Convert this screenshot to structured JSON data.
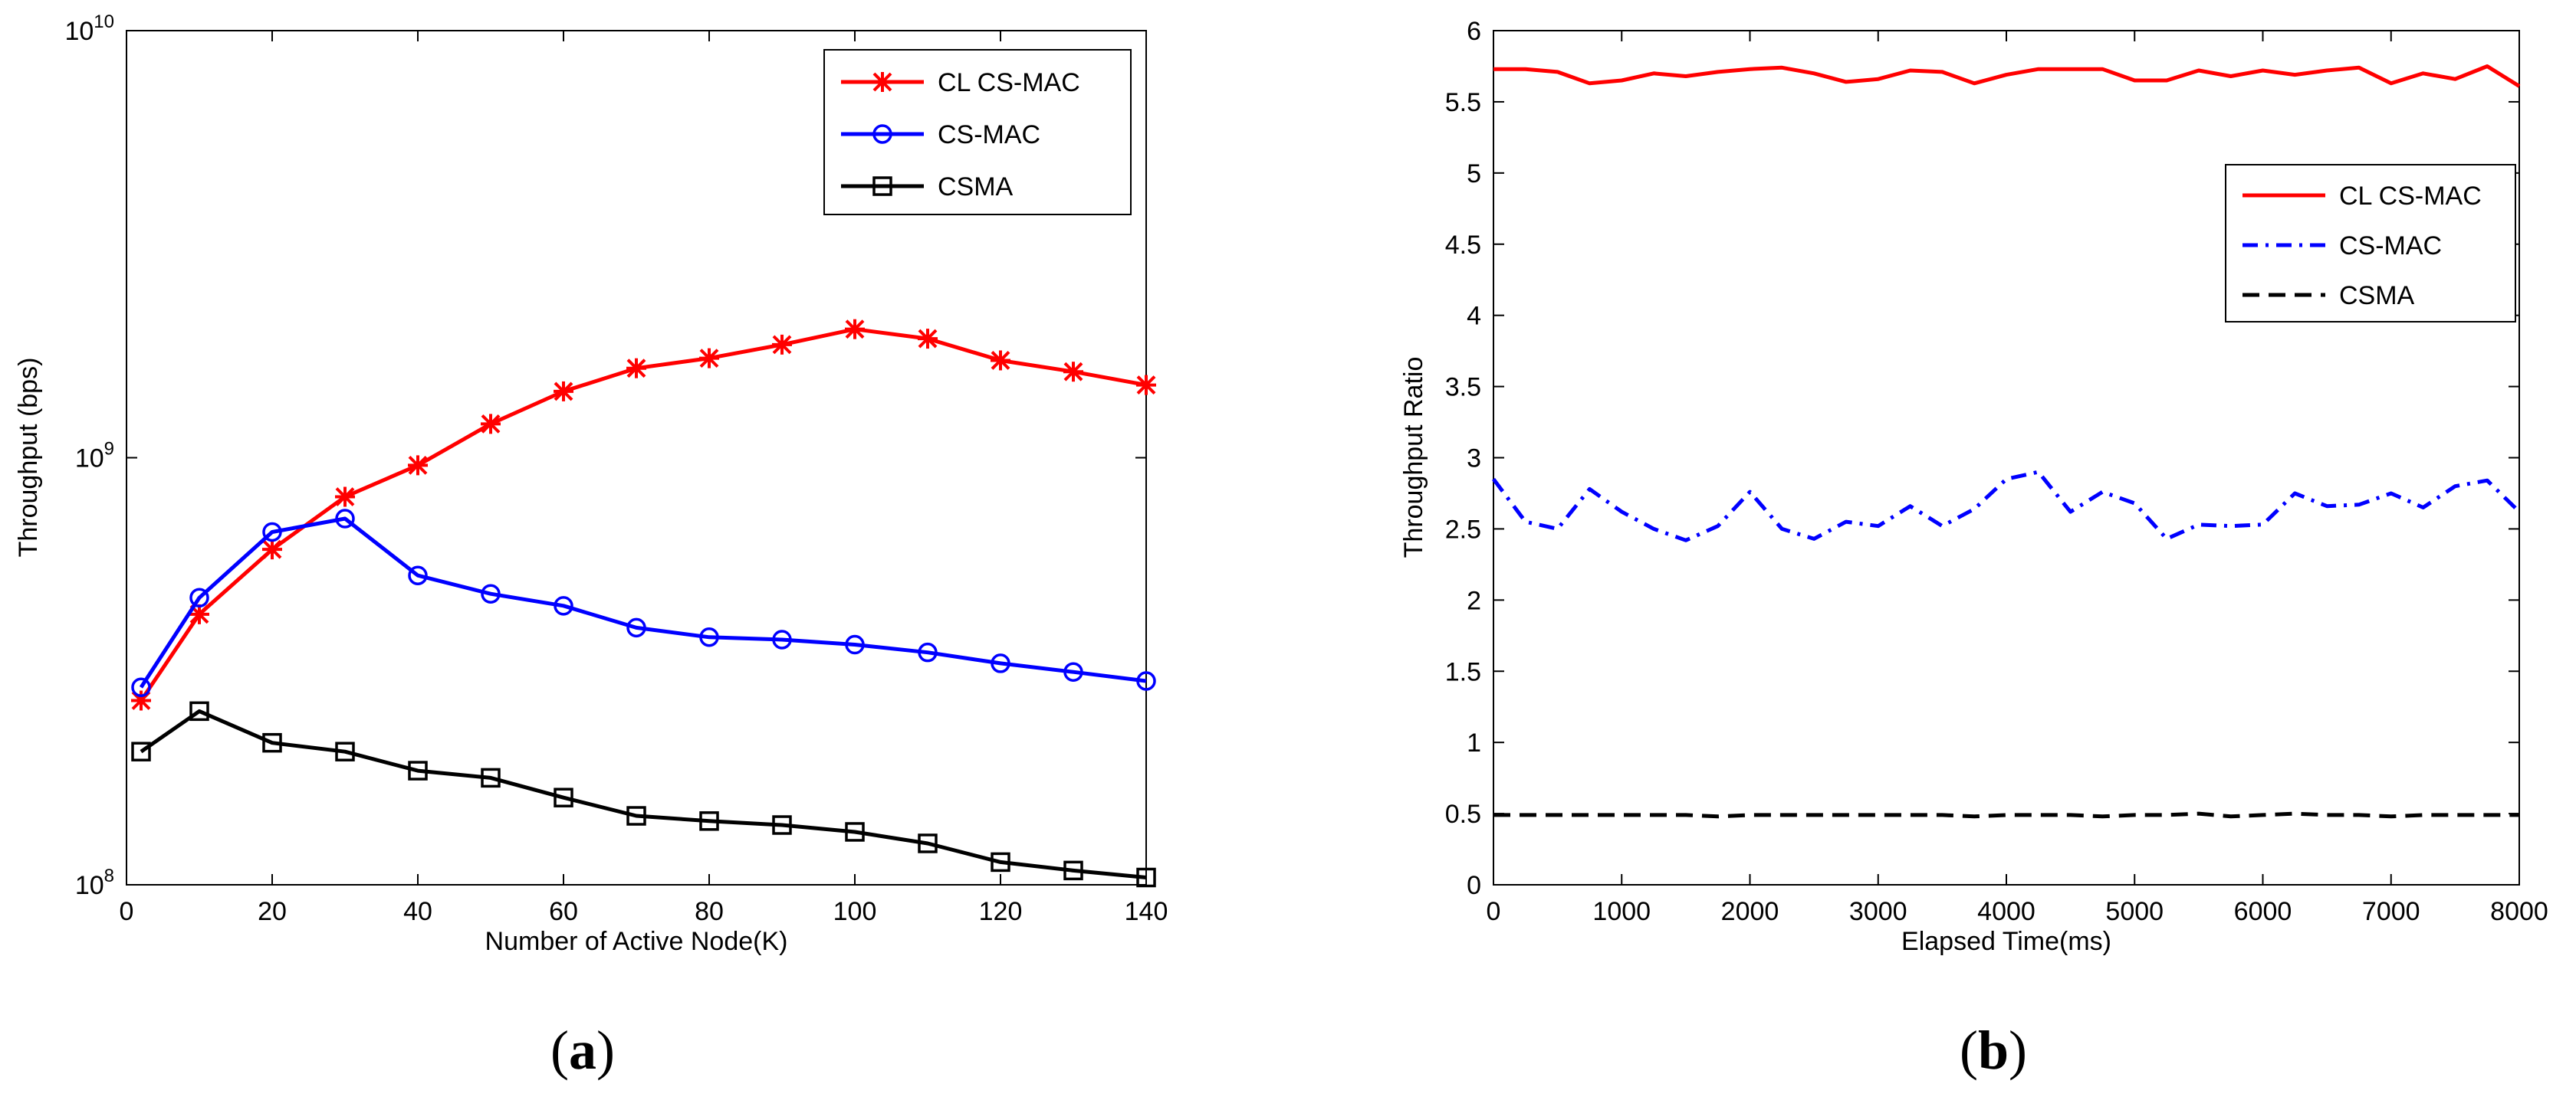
{
  "chart_data": [
    {
      "type": "line",
      "panel_label": "a",
      "title": "",
      "xlabel": "Number of Active Node(K)",
      "ylabel": "Throughput (bps)",
      "yscale": "log",
      "xlim": [
        0,
        140
      ],
      "ylim": [
        100000000,
        10000000000
      ],
      "xticks": [
        0,
        20,
        40,
        60,
        80,
        100,
        120,
        140
      ],
      "xtick_labels": [
        "0",
        "20",
        "40",
        "60",
        "80",
        "100",
        "120",
        "140"
      ],
      "yticks": [
        100000000,
        1000000000,
        10000000000
      ],
      "ytick_labels": [
        {
          "base": "10",
          "exp": "8"
        },
        {
          "base": "10",
          "exp": "9"
        },
        {
          "base": "10",
          "exp": "10"
        }
      ],
      "grid": false,
      "legend_position": "top-right",
      "x": [
        2,
        10,
        20,
        30,
        40,
        50,
        60,
        70,
        80,
        90,
        100,
        110,
        120,
        130,
        140
      ],
      "series": [
        {
          "name": "CL CS-MAC",
          "color": "#ff0000",
          "marker": "star",
          "style": "solid",
          "values": [
            270000000,
            430000000,
            610000000,
            810000000,
            960000000,
            1200000000,
            1430000000,
            1620000000,
            1710000000,
            1840000000,
            2000000000,
            1900000000,
            1690000000,
            1590000000,
            1480000000
          ]
        },
        {
          "name": "CS-MAC",
          "color": "#0000ff",
          "marker": "circle",
          "style": "solid",
          "values": [
            290000000,
            470000000,
            670000000,
            720000000,
            530000000,
            480000000,
            450000000,
            400000000,
            380000000,
            375000000,
            365000000,
            350000000,
            330000000,
            315000000,
            300000000
          ]
        },
        {
          "name": "CSMA",
          "color": "#000000",
          "marker": "square",
          "style": "solid",
          "values": [
            205000000,
            255000000,
            215000000,
            205000000,
            185000000,
            178000000,
            160000000,
            145000000,
            141000000,
            138000000,
            133000000,
            125000000,
            113000000,
            108000000,
            104000000
          ]
        }
      ]
    },
    {
      "type": "line",
      "panel_label": "b",
      "title": "",
      "xlabel": "Elapsed Time(ms)",
      "ylabel": "Throughput Ratio",
      "yscale": "linear",
      "xlim": [
        0,
        8000
      ],
      "ylim": [
        0,
        6
      ],
      "xticks": [
        0,
        1000,
        2000,
        3000,
        4000,
        5000,
        6000,
        7000,
        8000
      ],
      "xtick_labels": [
        "0",
        "1000",
        "2000",
        "3000",
        "4000",
        "5000",
        "6000",
        "7000",
        "8000"
      ],
      "yticks": [
        0,
        0.5,
        1,
        1.5,
        2,
        2.5,
        3,
        3.5,
        4,
        4.5,
        5,
        5.5,
        6
      ],
      "ytick_labels": [
        "0",
        "0.5",
        "1",
        "1.5",
        "2",
        "2.5",
        "3",
        "3.5",
        "4",
        "4.5",
        "5",
        "5.5",
        "6"
      ],
      "grid": false,
      "legend_position": "upper-right",
      "x": [
        0,
        250,
        500,
        750,
        1000,
        1250,
        1500,
        1750,
        2000,
        2250,
        2500,
        2750,
        3000,
        3250,
        3500,
        3750,
        4000,
        4250,
        4500,
        4750,
        5000,
        5250,
        5500,
        5750,
        6000,
        6250,
        6500,
        6750,
        7000,
        7250,
        7500,
        7750,
        8000
      ],
      "series": [
        {
          "name": "CL CS-MAC",
          "color": "#ff0000",
          "style": "solid",
          "values": [
            5.73,
            5.73,
            5.71,
            5.63,
            5.65,
            5.7,
            5.68,
            5.71,
            5.73,
            5.74,
            5.7,
            5.64,
            5.66,
            5.72,
            5.71,
            5.63,
            5.69,
            5.73,
            5.73,
            5.73,
            5.65,
            5.65,
            5.72,
            5.68,
            5.72,
            5.69,
            5.72,
            5.74,
            5.63,
            5.7,
            5.66,
            5.75,
            5.61
          ]
        },
        {
          "name": "CS-MAC",
          "color": "#0000ff",
          "style": "dashdot",
          "values": [
            2.85,
            2.55,
            2.5,
            2.78,
            2.62,
            2.5,
            2.42,
            2.52,
            2.76,
            2.5,
            2.43,
            2.55,
            2.52,
            2.66,
            2.52,
            2.64,
            2.85,
            2.9,
            2.62,
            2.76,
            2.68,
            2.43,
            2.53,
            2.52,
            2.53,
            2.75,
            2.66,
            2.67,
            2.75,
            2.65,
            2.8,
            2.84,
            2.62
          ]
        },
        {
          "name": "CSMA",
          "color": "#000000",
          "style": "dashed",
          "values": [
            0.49,
            0.49,
            0.49,
            0.49,
            0.49,
            0.49,
            0.49,
            0.48,
            0.49,
            0.49,
            0.49,
            0.49,
            0.49,
            0.49,
            0.49,
            0.48,
            0.49,
            0.49,
            0.49,
            0.48,
            0.49,
            0.49,
            0.5,
            0.48,
            0.49,
            0.5,
            0.49,
            0.49,
            0.48,
            0.49,
            0.49,
            0.49,
            0.49
          ]
        }
      ]
    }
  ]
}
